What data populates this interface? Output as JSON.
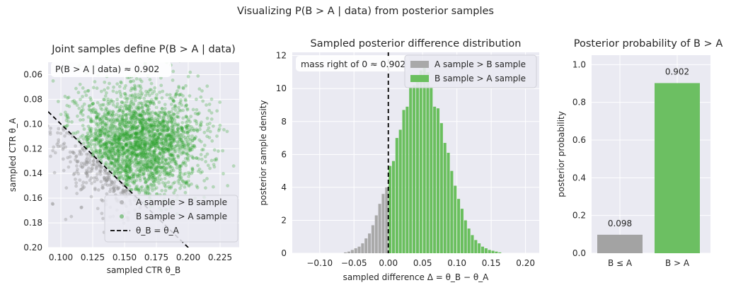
{
  "suptitle": "Visualizing P(B > A | data) from posterior samples",
  "chart_data": [
    {
      "type": "scatter",
      "title": "Joint samples define P(B > A | data)",
      "xlabel": "sampled CTR θ_B",
      "ylabel": "sampled CTR θ_A",
      "xlim": [
        0.09,
        0.24
      ],
      "ylim": [
        0.05,
        0.2
      ],
      "y_inverted": true,
      "xticks": [
        "0.100",
        "0.125",
        "0.150",
        "0.175",
        "0.200",
        "0.225"
      ],
      "yticks": [
        "0.06",
        "0.08",
        "0.10",
        "0.12",
        "0.14",
        "0.16",
        "0.18",
        "0.20"
      ],
      "annotation": "P(B > A | data) ≈ 0.902",
      "series": [
        {
          "name": "A sample > B sample",
          "color": "#8c8c8c",
          "center": [
            0.135,
            0.145
          ],
          "share": 0.098
        },
        {
          "name": "B sample > A sample",
          "color": "#2ca02c",
          "center": [
            0.168,
            0.108
          ],
          "share": 0.902
        }
      ],
      "reference_line": {
        "name": "θ_B = θ_A",
        "style": "dashed",
        "color": "#000000"
      },
      "legend_position": "lower right",
      "grid": true
    },
    {
      "type": "bar",
      "title": "Sampled posterior difference distribution",
      "xlabel": "sampled difference Δ = θ_B − θ_A",
      "ylabel": "posterior sample density",
      "xlim": [
        -0.14,
        0.22
      ],
      "ylim": [
        0,
        12.2
      ],
      "xticks": [
        "−0.10",
        "−0.05",
        "0.00",
        "0.05",
        "0.10",
        "0.15",
        "0.20"
      ],
      "yticks": [
        "0",
        "2",
        "4",
        "6",
        "8",
        "10",
        "12"
      ],
      "annotation": "mass right of 0 ≈ 0.902",
      "vline_x": 0.0,
      "bin_width": 0.005,
      "bins_left": [
        [
          -0.065,
          0.05
        ],
        [
          -0.06,
          0.1
        ],
        [
          -0.055,
          0.2
        ],
        [
          -0.05,
          0.3
        ],
        [
          -0.045,
          0.4
        ],
        [
          -0.04,
          0.6
        ],
        [
          -0.035,
          0.9
        ],
        [
          -0.03,
          1.2
        ],
        [
          -0.025,
          1.7
        ],
        [
          -0.02,
          2.3
        ],
        [
          -0.015,
          3.0
        ],
        [
          -0.01,
          3.6
        ],
        [
          -0.005,
          4.0
        ]
      ],
      "bins_right": [
        [
          0.0,
          5.3
        ],
        [
          0.005,
          5.6
        ],
        [
          0.01,
          7.0
        ],
        [
          0.015,
          7.5
        ],
        [
          0.02,
          8.7
        ],
        [
          0.025,
          8.9
        ],
        [
          0.03,
          10.1
        ],
        [
          0.035,
          10.2
        ],
        [
          0.04,
          10.8
        ],
        [
          0.045,
          11.1
        ],
        [
          0.05,
          11.4
        ],
        [
          0.055,
          11.0
        ],
        [
          0.06,
          10.1
        ],
        [
          0.065,
          8.9
        ],
        [
          0.07,
          8.8
        ],
        [
          0.075,
          7.9
        ],
        [
          0.08,
          6.7
        ],
        [
          0.085,
          6.1
        ],
        [
          0.09,
          5.0
        ],
        [
          0.095,
          4.1
        ],
        [
          0.1,
          3.3
        ],
        [
          0.105,
          2.7
        ],
        [
          0.11,
          2.0
        ],
        [
          0.115,
          1.5
        ],
        [
          0.12,
          1.1
        ],
        [
          0.125,
          0.8
        ],
        [
          0.13,
          0.6
        ],
        [
          0.135,
          0.4
        ],
        [
          0.14,
          0.3
        ],
        [
          0.145,
          0.2
        ],
        [
          0.15,
          0.15
        ],
        [
          0.155,
          0.1
        ],
        [
          0.16,
          0.05
        ]
      ],
      "series": [
        {
          "name": "A sample > B sample",
          "color": "#a9a9a9"
        },
        {
          "name": "B sample > A sample",
          "color": "#6abf5e"
        }
      ],
      "legend_position": "upper right",
      "grid": true
    },
    {
      "type": "bar",
      "title": "Posterior probability of B > A",
      "ylabel": "posterior probability",
      "categories": [
        "B ≤ A",
        "B > A"
      ],
      "values": [
        0.098,
        0.902
      ],
      "value_labels": [
        "0.098",
        "0.902"
      ],
      "colors": [
        "#a3a3a3",
        "#6cbf62"
      ],
      "ylim": [
        0,
        1.05
      ],
      "yticks": [
        "0.0",
        "0.2",
        "0.4",
        "0.6",
        "0.8",
        "1.0"
      ],
      "grid": true
    }
  ]
}
